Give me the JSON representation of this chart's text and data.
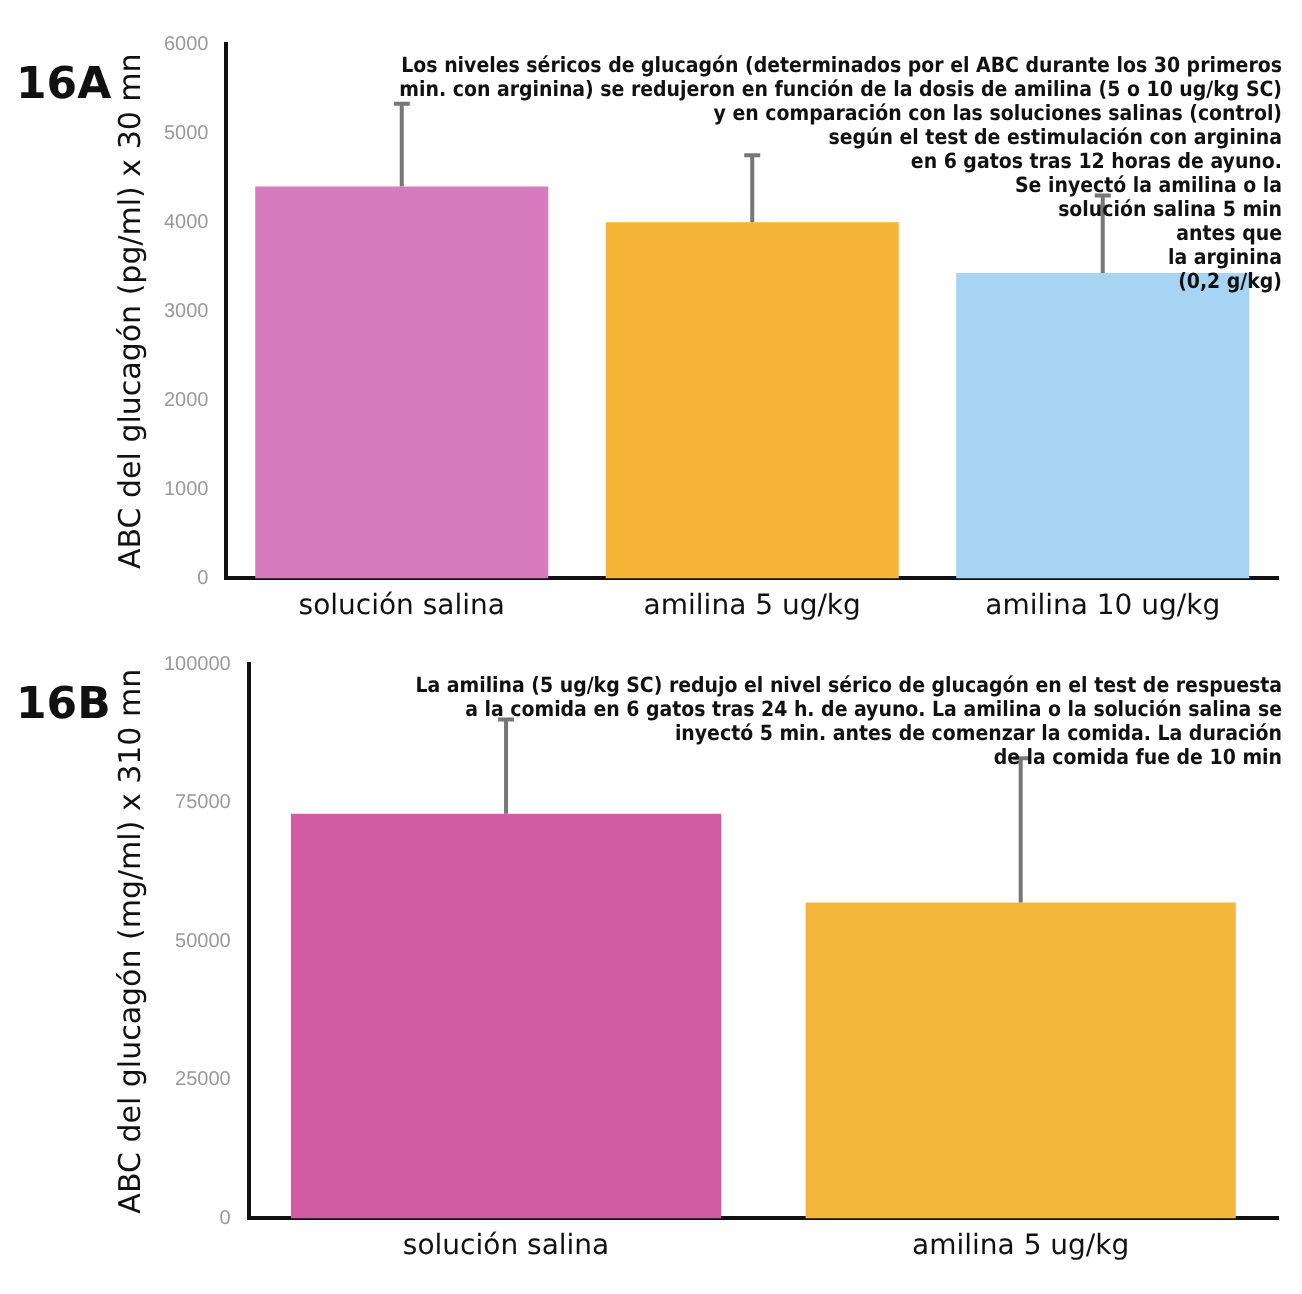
{
  "chart_data": [
    {
      "type": "bar",
      "ylabel": "ABC del glucagón (pg/ml) x 30 mn",
      "categories": [
        "solución salina",
        "amilina 5 ug/kg",
        "amilina 10 ug/kg"
      ],
      "colors": [
        "#d77bbf",
        "#f6b436",
        "#a7d4f2"
      ],
      "values": [
        4400,
        4000,
        3430
      ],
      "errors": [
        930,
        750,
        870
      ],
      "ylim": [
        0,
        6000
      ],
      "yticks": [
        0,
        1000,
        2000,
        3000,
        4000,
        5000,
        6000
      ],
      "grid": false,
      "legend": false,
      "annotations": [
        "16A",
        "Los niveles séricos de glucagón (determinados por el ABC durante los 30 primeros\nmin. con arginina) se redujeron en función de la dosis de amilina (5 o 10 ug/kg SC)\ny en comparación con las soluciones salinas (control)\nsegún el test de estimulación con arginina\nen 6 gatos tras 12 horas de ayuno.\nSe inyectó la amilina o la\nsolución salina 5 min\nantes que\nla arginina\n(0,2 g/kg)"
      ]
    },
    {
      "type": "bar",
      "ylabel": "ABC del glucagón (mg/ml) x 310 mn",
      "categories": [
        "solución salina",
        "amilina 5 ug/kg"
      ],
      "colors": [
        "#d25ca3",
        "#f3b63a"
      ],
      "values": [
        73000,
        57000
      ],
      "errors": [
        17000,
        26000
      ],
      "ylim": [
        0,
        100000
      ],
      "yticks": [
        0,
        25000,
        50000,
        75000,
        100000
      ],
      "grid": false,
      "legend": false,
      "annotations": [
        "16B",
        "La amilina (5 ug/kg SC) redujo el nivel sérico de glucagón en el test de respuesta\na la comida en 6 gatos tras 24 h. de ayuno. La amilina o la solución salina se\ninyectó 5 min. antes de comenzar la comida. La duración\nde la comida fue de 10 min"
      ]
    }
  ]
}
